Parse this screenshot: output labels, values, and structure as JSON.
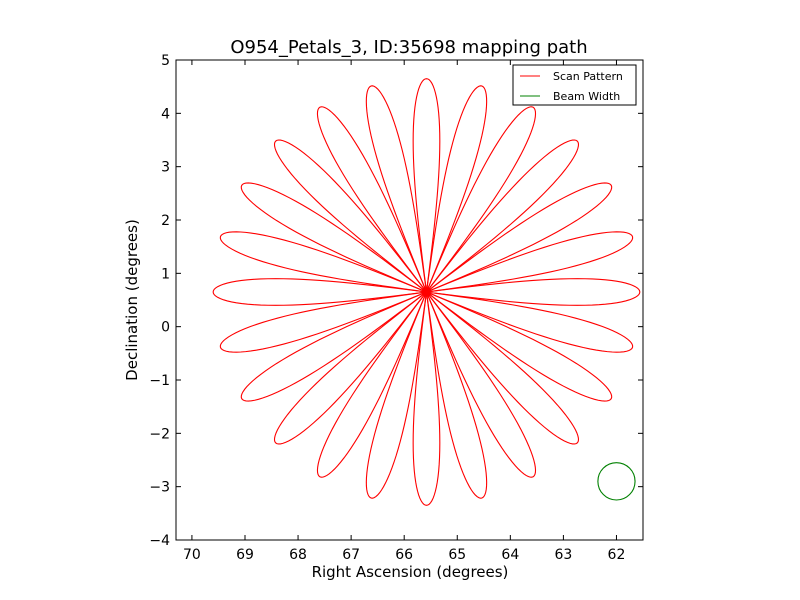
{
  "chart_data": {
    "type": "line",
    "title": "O954_Petals_3, ID:35698 mapping path",
    "xlabel": "Right Ascension (degrees)",
    "ylabel": "Declination (degrees)",
    "xlim": [
      70.3,
      61.5
    ],
    "ylim": [
      -4,
      5
    ],
    "x_inverted": true,
    "xticks": [
      70,
      69,
      68,
      67,
      66,
      65,
      64,
      63,
      62
    ],
    "xtick_labels": [
      "70",
      "69",
      "68",
      "67",
      "66",
      "65",
      "64",
      "63",
      "62"
    ],
    "yticks": [
      -4,
      -3,
      -2,
      -1,
      0,
      1,
      2,
      3,
      4,
      5
    ],
    "ytick_labels": [
      "−4",
      "−3",
      "−2",
      "−1",
      "0",
      "1",
      "2",
      "3",
      "4",
      "5"
    ],
    "grid": false,
    "legend_position": "top-right",
    "series": [
      {
        "name": "Scan Pattern",
        "color": "#ff0000",
        "kind": "rose-petals",
        "center": [
          65.58,
          0.65
        ],
        "petals": 24,
        "petal_length_dec": 4.0,
        "petal_half_width_dec": 0.25,
        "first_petal_angle_deg": 90
      },
      {
        "name": "Beam Width",
        "color": "#008000",
        "kind": "circle",
        "center": [
          62.0,
          -2.9
        ],
        "radius_dec": 0.35
      }
    ]
  }
}
